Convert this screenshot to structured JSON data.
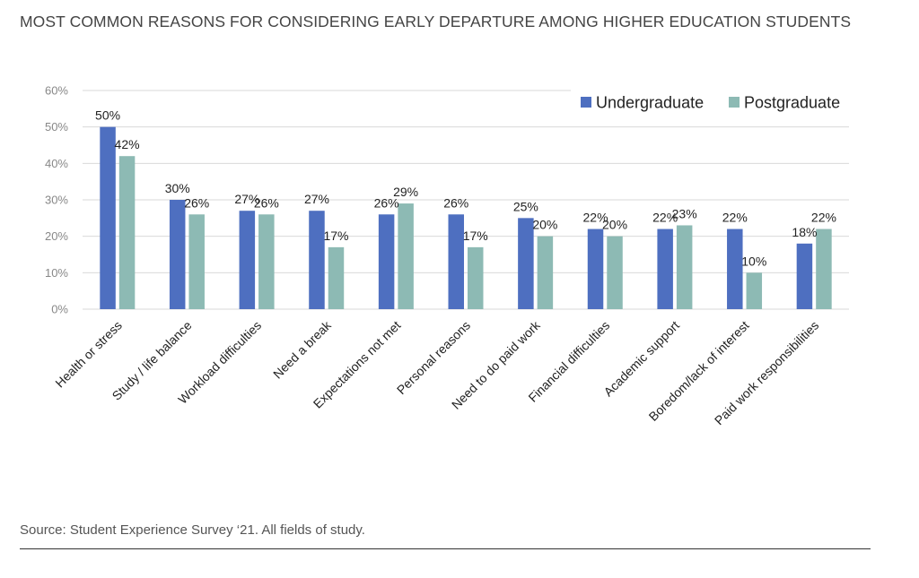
{
  "header": {
    "title": "MOST COMMON REASONS FOR CONSIDERING EARLY DEPARTURE AMONG HIGHER EDUCATION STUDENTS"
  },
  "footer": {
    "source": "Source: Student Experience Survey ‘21. All fields of study."
  },
  "colors": {
    "undergraduate": "#4e6fc0",
    "postgraduate": "#8dbab4",
    "grid": "#d9d9d9"
  },
  "chart_data": {
    "type": "bar",
    "title": "MOST COMMON REASONS FOR CONSIDERING EARLY DEPARTURE AMONG HIGHER EDUCATION STUDENTS",
    "xlabel": "",
    "ylabel": "",
    "ylim": [
      0,
      60
    ],
    "yticks": [
      "0%",
      "10%",
      "20%",
      "30%",
      "40%",
      "50%",
      "60%"
    ],
    "grid": true,
    "legend_position": "top-right",
    "categories": [
      "Health or stress",
      "Study / life balance",
      "Workload difficulties",
      "Need a break",
      "Expectations not met",
      "Personal reasons",
      "Need to do paid work",
      "Financial difficulties",
      "Academic support",
      "Boredom/lack of interest",
      "Paid work responsibilities"
    ],
    "series": [
      {
        "name": "Undergraduate",
        "values": [
          50,
          30,
          27,
          27,
          26,
          26,
          25,
          22,
          22,
          22,
          18
        ]
      },
      {
        "name": "Postgraduate",
        "values": [
          42,
          26,
          26,
          17,
          29,
          17,
          20,
          20,
          23,
          10,
          22
        ]
      }
    ]
  }
}
